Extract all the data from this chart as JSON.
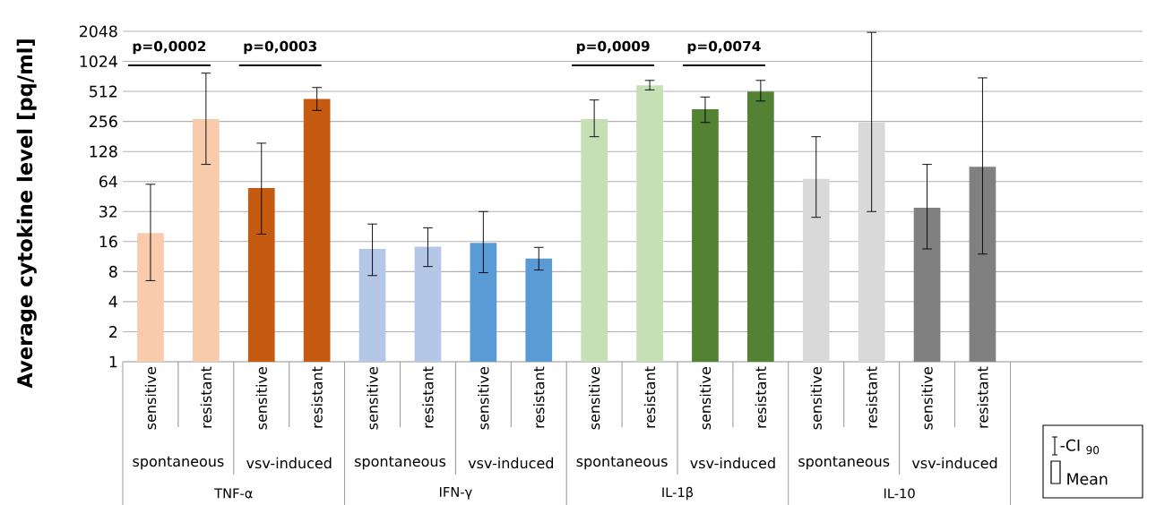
{
  "chart_data": {
    "type": "bar",
    "ylabel": "Average cytokine level [pq/ml]",
    "categories": [
      "sensitive",
      "resistant",
      "sensitive",
      "resistant",
      "sensitive",
      "resistant",
      "sensitive",
      "resistant",
      "sensitive",
      "resistant",
      "sensitive",
      "resistant",
      "sensitive",
      "resistant",
      "sensitive",
      "resistant"
    ],
    "values": [
      19.5,
      270,
      55,
      430,
      13.5,
      14.2,
      15.5,
      10.8,
      270,
      590,
      340,
      510,
      68,
      250,
      35,
      90
    ],
    "errors": [
      [
        6.5,
        60
      ],
      [
        95,
        780
      ],
      [
        19,
        155
      ],
      [
        330,
        560
      ],
      [
        7.3,
        24
      ],
      [
        9,
        22
      ],
      [
        7.8,
        32
      ],
      [
        8.3,
        14
      ],
      [
        180,
        420
      ],
      [
        530,
        660
      ],
      [
        250,
        450
      ],
      [
        410,
        660
      ],
      [
        28,
        180
      ],
      [
        32,
        2000
      ],
      [
        13.5,
        95
      ],
      [
        12,
        700
      ]
    ],
    "colors": [
      "#f8cbad",
      "#f8cbad",
      "#c55a11",
      "#c55a11",
      "#b4c7e7",
      "#b4c7e7",
      "#5b9bd5",
      "#5b9bd5",
      "#c5e0b4",
      "#c5e0b4",
      "#548235",
      "#548235",
      "#d9d9d9",
      "#d9d9d9",
      "#808080",
      "#808080"
    ],
    "log": "y",
    "ylim": [
      1,
      2048
    ],
    "yticks": [
      1,
      2,
      4,
      8,
      16,
      32,
      64,
      128,
      256,
      512,
      1024,
      2048
    ],
    "grid": "y",
    "annotations": [
      "p=0,0002",
      "p=0,0003",
      "p=0,0009",
      "p=0,0074",
      "spontaneous",
      "vsv-induced",
      "spontaneous",
      "vsv-induced",
      "spontaneous",
      "vsv-induced",
      "spontaneous",
      "vsv-induced",
      "TNF-α",
      "IFN-γ",
      "IL-1β",
      "IL-10",
      "-CI $_{90}$",
      "Mean"
    ]
  }
}
